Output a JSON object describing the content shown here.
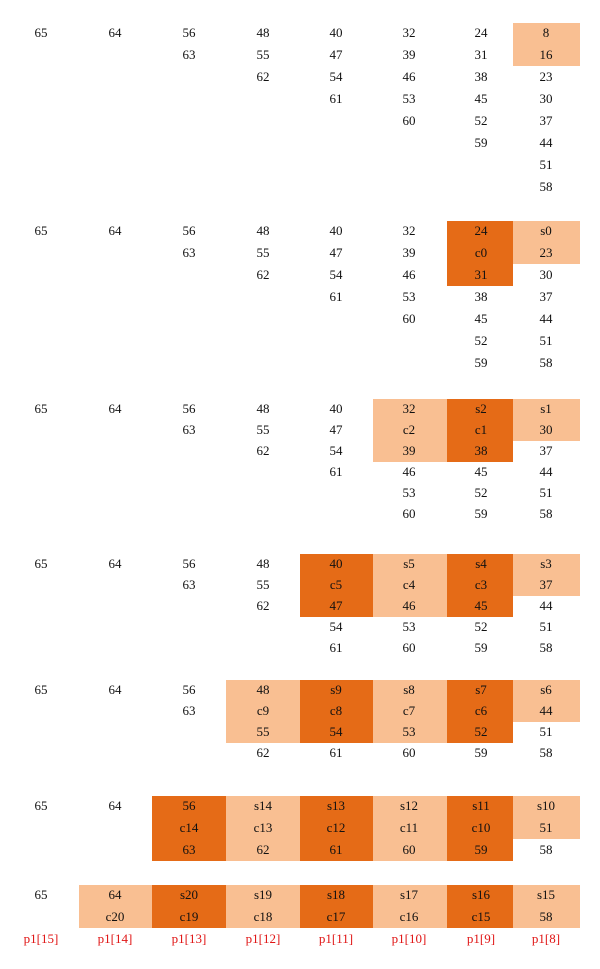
{
  "colors": {
    "light": "#f9bf92",
    "dark": "#e56b17",
    "text": "#111111",
    "label": "#e01515"
  },
  "columns": [
    "p1[15]",
    "p1[14]",
    "p1[13]",
    "p1[12]",
    "p1[11]",
    "p1[10]",
    "p1[9]",
    "p1[8]"
  ],
  "stages": [
    {
      "columns": [
        [
          "65"
        ],
        [
          "64"
        ],
        [
          "56",
          "63"
        ],
        [
          "48",
          "55",
          "62"
        ],
        [
          "40",
          "47",
          "54",
          "61"
        ],
        [
          "32",
          "39",
          "46",
          "53",
          "60"
        ],
        [
          "24",
          "31",
          "38",
          "45",
          "52",
          "59"
        ],
        [
          "8",
          "16",
          "23",
          "30",
          "37",
          "44",
          "51",
          "58"
        ]
      ],
      "highlights": [
        {
          "col": 7,
          "from": 0,
          "to": 1,
          "shade": "light"
        }
      ]
    },
    {
      "columns": [
        [
          "65"
        ],
        [
          "64"
        ],
        [
          "56",
          "63"
        ],
        [
          "48",
          "55",
          "62"
        ],
        [
          "40",
          "47",
          "54",
          "61"
        ],
        [
          "32",
          "39",
          "46",
          "53",
          "60"
        ],
        [
          "24",
          "c0",
          "31",
          "38",
          "45",
          "52",
          "59"
        ],
        [
          "s0",
          "23",
          "30",
          "37",
          "44",
          "51",
          "58"
        ]
      ],
      "highlights": [
        {
          "col": 6,
          "from": 0,
          "to": 2,
          "shade": "dark"
        },
        {
          "col": 7,
          "from": 0,
          "to": 1,
          "shade": "light"
        }
      ]
    },
    {
      "columns": [
        [
          "65"
        ],
        [
          "64"
        ],
        [
          "56",
          "63"
        ],
        [
          "48",
          "55",
          "62"
        ],
        [
          "40",
          "47",
          "54",
          "61"
        ],
        [
          "32",
          "c2",
          "39",
          "46",
          "53",
          "60"
        ],
        [
          "s2",
          "c1",
          "38",
          "45",
          "52",
          "59"
        ],
        [
          "s1",
          "30",
          "37",
          "44",
          "51",
          "58"
        ]
      ],
      "highlights": [
        {
          "col": 5,
          "from": 0,
          "to": 2,
          "shade": "light"
        },
        {
          "col": 6,
          "from": 0,
          "to": 2,
          "shade": "dark"
        },
        {
          "col": 7,
          "from": 0,
          "to": 1,
          "shade": "light"
        }
      ]
    },
    {
      "columns": [
        [
          "65"
        ],
        [
          "64"
        ],
        [
          "56",
          "63"
        ],
        [
          "48",
          "55",
          "62"
        ],
        [
          "40",
          "c5",
          "47",
          "54",
          "61"
        ],
        [
          "s5",
          "c4",
          "46",
          "53",
          "60"
        ],
        [
          "s4",
          "c3",
          "45",
          "52",
          "59"
        ],
        [
          "s3",
          "37",
          "44",
          "51",
          "58"
        ]
      ],
      "highlights": [
        {
          "col": 4,
          "from": 0,
          "to": 2,
          "shade": "dark"
        },
        {
          "col": 5,
          "from": 0,
          "to": 2,
          "shade": "light"
        },
        {
          "col": 6,
          "from": 0,
          "to": 2,
          "shade": "dark"
        },
        {
          "col": 7,
          "from": 0,
          "to": 1,
          "shade": "light"
        }
      ]
    },
    {
      "columns": [
        [
          "65"
        ],
        [
          "64"
        ],
        [
          "56",
          "63"
        ],
        [
          "48",
          "c9",
          "55",
          "62"
        ],
        [
          "s9",
          "c8",
          "54",
          "61"
        ],
        [
          "s8",
          "c7",
          "53",
          "60"
        ],
        [
          "s7",
          "c6",
          "52",
          "59"
        ],
        [
          "s6",
          "44",
          "51",
          "58"
        ]
      ],
      "highlights": [
        {
          "col": 3,
          "from": 0,
          "to": 2,
          "shade": "light"
        },
        {
          "col": 4,
          "from": 0,
          "to": 2,
          "shade": "dark"
        },
        {
          "col": 5,
          "from": 0,
          "to": 2,
          "shade": "light"
        },
        {
          "col": 6,
          "from": 0,
          "to": 2,
          "shade": "dark"
        },
        {
          "col": 7,
          "from": 0,
          "to": 1,
          "shade": "light"
        }
      ]
    },
    {
      "columns": [
        [
          "65"
        ],
        [
          "64"
        ],
        [
          "56",
          "c14",
          "63"
        ],
        [
          "s14",
          "c13",
          "62"
        ],
        [
          "s13",
          "c12",
          "61"
        ],
        [
          "s12",
          "c11",
          "60"
        ],
        [
          "s11",
          "c10",
          "59"
        ],
        [
          "s10",
          "51",
          "58"
        ]
      ],
      "highlights": [
        {
          "col": 2,
          "from": 0,
          "to": 2,
          "shade": "dark"
        },
        {
          "col": 3,
          "from": 0,
          "to": 2,
          "shade": "light"
        },
        {
          "col": 4,
          "from": 0,
          "to": 2,
          "shade": "dark"
        },
        {
          "col": 5,
          "from": 0,
          "to": 2,
          "shade": "light"
        },
        {
          "col": 6,
          "from": 0,
          "to": 2,
          "shade": "dark"
        },
        {
          "col": 7,
          "from": 0,
          "to": 1,
          "shade": "light"
        }
      ]
    },
    {
      "columns": [
        [
          "65"
        ],
        [
          "64",
          "c20"
        ],
        [
          "s20",
          "c19"
        ],
        [
          "s19",
          "c18"
        ],
        [
          "s18",
          "c17"
        ],
        [
          "s17",
          "c16"
        ],
        [
          "s16",
          "c15"
        ],
        [
          "s15",
          "58"
        ]
      ],
      "highlights": [
        {
          "col": 1,
          "from": 0,
          "to": 1,
          "shade": "light"
        },
        {
          "col": 2,
          "from": 0,
          "to": 1,
          "shade": "dark"
        },
        {
          "col": 3,
          "from": 0,
          "to": 1,
          "shade": "light"
        },
        {
          "col": 4,
          "from": 0,
          "to": 1,
          "shade": "dark"
        },
        {
          "col": 5,
          "from": 0,
          "to": 1,
          "shade": "light"
        },
        {
          "col": 6,
          "from": 0,
          "to": 1,
          "shade": "dark"
        },
        {
          "col": 7,
          "from": 0,
          "to": 1,
          "shade": "light"
        }
      ]
    }
  ]
}
